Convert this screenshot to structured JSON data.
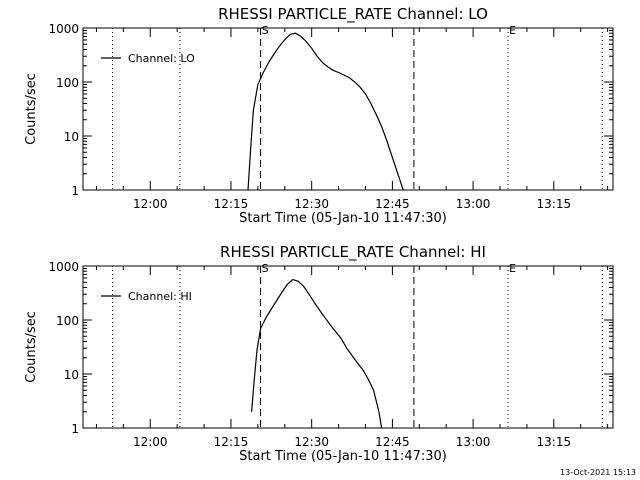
{
  "chart_data": [
    {
      "type": "line",
      "title": "RHESSI PARTICLE_RATE Channel: LO",
      "xlabel": "Start Time (05-Jan-10 11:47:30)",
      "ylabel": "Counts/sec",
      "yscale": "log",
      "ylim": [
        1,
        1000
      ],
      "xlim": [
        "11:47:30",
        "13:26:00"
      ],
      "xticks": [
        "12:00",
        "12:15",
        "12:30",
        "12:45",
        "13:00",
        "13:15"
      ],
      "yticks": [
        "1",
        "10",
        "100",
        "1000"
      ],
      "legend": "top-left",
      "series": [
        {
          "name": "Channel: LO",
          "x": [
            "12:18:10",
            "12:18:40",
            "12:19:10",
            "12:20:00",
            "12:21:00",
            "12:22:00",
            "12:23:00",
            "12:24:00",
            "12:25:00",
            "12:26:00",
            "12:27:00",
            "12:28:00",
            "12:29:00",
            "12:30:00",
            "12:31:00",
            "12:32:00",
            "12:33:00",
            "12:34:00",
            "12:35:00",
            "12:36:00",
            "12:37:00",
            "12:38:00",
            "12:39:00",
            "12:40:00",
            "12:41:00",
            "12:42:00",
            "12:43:00",
            "12:44:00",
            "12:45:00",
            "12:46:00",
            "12:47:00"
          ],
          "values": [
            1,
            6,
            30,
            90,
            150,
            230,
            330,
            460,
            610,
            760,
            800,
            700,
            560,
            420,
            300,
            230,
            190,
            165,
            150,
            135,
            120,
            100,
            80,
            60,
            40,
            25,
            15,
            8,
            4,
            2,
            1
          ]
        }
      ],
      "markers": [
        {
          "label": "",
          "time": "11:53:00",
          "style": "dotted"
        },
        {
          "label": "",
          "time": "12:05:30",
          "style": "dotted"
        },
        {
          "label": "S",
          "time": "12:20:30",
          "style": "dashed"
        },
        {
          "label": "",
          "time": "12:49:00",
          "style": "dashed"
        },
        {
          "label": "E",
          "time": "13:06:30",
          "style": "dotted"
        },
        {
          "label": "",
          "time": "13:24:00",
          "style": "dotted"
        }
      ]
    },
    {
      "type": "line",
      "title": "RHESSI PARTICLE_RATE Channel: HI",
      "xlabel": "Start Time (05-Jan-10 11:47:30)",
      "ylabel": "Counts/sec",
      "yscale": "log",
      "ylim": [
        1,
        1000
      ],
      "xlim": [
        "11:47:30",
        "13:26:00"
      ],
      "xticks": [
        "12:00",
        "12:15",
        "12:30",
        "12:45",
        "13:00",
        "13:15"
      ],
      "yticks": [
        "1",
        "10",
        "100",
        "1000"
      ],
      "legend": "top-left",
      "series": [
        {
          "name": "Channel: HI",
          "x": [
            "12:18:50",
            "12:19:20",
            "12:19:50",
            "12:20:30",
            "12:21:30",
            "12:22:30",
            "12:23:30",
            "12:24:30",
            "12:25:30",
            "12:26:30",
            "12:27:30",
            "12:28:30",
            "12:29:30",
            "12:30:30",
            "12:31:30",
            "12:32:30",
            "12:33:30",
            "12:34:30",
            "12:35:30",
            "12:36:30",
            "12:37:30",
            "12:38:30",
            "12:39:30",
            "12:40:30",
            "12:41:30",
            "12:42:30",
            "12:43:00"
          ],
          "values": [
            2,
            8,
            28,
            70,
            110,
            160,
            230,
            330,
            460,
            560,
            520,
            420,
            300,
            210,
            150,
            110,
            80,
            60,
            45,
            30,
            22,
            16,
            12,
            8,
            5,
            2,
            1
          ]
        }
      ],
      "markers": [
        {
          "label": "",
          "time": "11:53:00",
          "style": "dotted"
        },
        {
          "label": "",
          "time": "12:05:30",
          "style": "dotted"
        },
        {
          "label": "S",
          "time": "12:20:30",
          "style": "dashed"
        },
        {
          "label": "",
          "time": "12:49:00",
          "style": "dashed"
        },
        {
          "label": "E",
          "time": "13:06:30",
          "style": "dotted"
        },
        {
          "label": "",
          "time": "13:24:00",
          "style": "dotted"
        }
      ]
    }
  ],
  "timestamp": "13-Oct-2021 15:13"
}
